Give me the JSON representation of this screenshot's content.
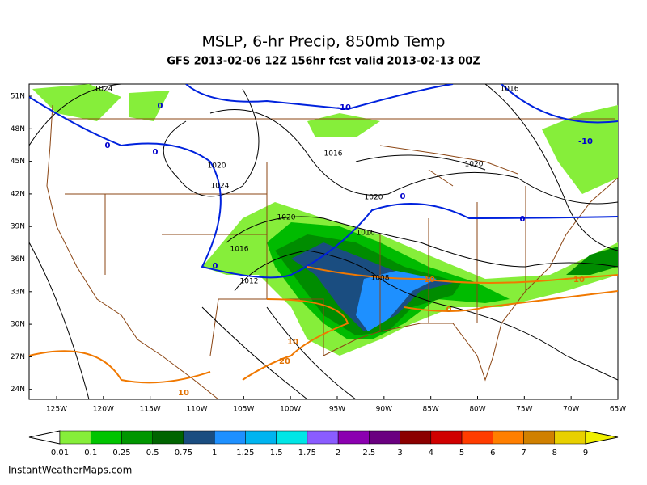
{
  "header": {
    "title": "MSLP, 6-hr Precip, 850mb Temp",
    "subtitle": "GFS 2013-02-06 12Z 156hr fcst valid 2013-02-13 00Z"
  },
  "map": {
    "lat_labels": [
      "51N",
      "48N",
      "45N",
      "42N",
      "39N",
      "36N",
      "33N",
      "30N",
      "27N",
      "24N"
    ],
    "lon_labels": [
      "125W",
      "120W",
      "115W",
      "110W",
      "105W",
      "100W",
      "95W",
      "90W",
      "85W",
      "80W",
      "75W",
      "70W",
      "65W"
    ],
    "pressure_labels": [
      "1024",
      "1016",
      "1020",
      "1024",
      "1016",
      "1020",
      "1020",
      "1020",
      "1016",
      "1016",
      "1012",
      "1008"
    ],
    "temp_labels": [
      "-10",
      "0",
      "0",
      "0",
      "-10",
      "0",
      "0",
      "0",
      "10",
      "10",
      "0",
      "10",
      "20",
      "10"
    ]
  },
  "colorbar": {
    "labels": [
      "0.01",
      "0.1",
      "0.25",
      "0.5",
      "0.75",
      "1",
      "1.25",
      "1.5",
      "1.75",
      "2",
      "2.5",
      "3",
      "4",
      "5",
      "6",
      "7",
      "8",
      "9"
    ]
  },
  "credit": "InstantWeatherMaps.com"
}
